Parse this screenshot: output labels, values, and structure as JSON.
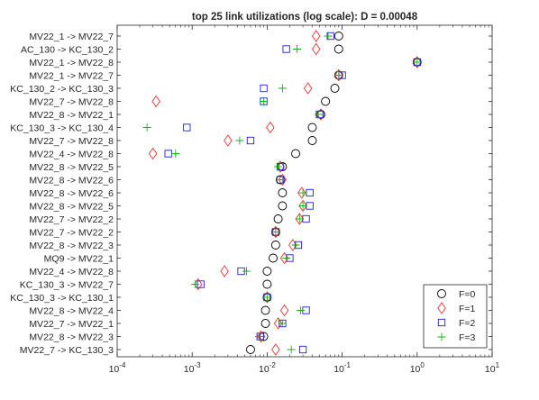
{
  "chart_data": {
    "type": "scatter",
    "title": "top 25 link utilizations (log scale): D = 0.00048",
    "xscale": "log",
    "xlim": [
      0.0001,
      10
    ],
    "xticks": [
      {
        "value": 0.0001,
        "base": "10",
        "exp": "-4"
      },
      {
        "value": 0.001,
        "base": "10",
        "exp": "-3"
      },
      {
        "value": 0.01,
        "base": "10",
        "exp": "-2"
      },
      {
        "value": 0.1,
        "base": "10",
        "exp": "-1"
      },
      {
        "value": 1,
        "base": "10",
        "exp": "0"
      },
      {
        "value": 10,
        "base": "10",
        "exp": "1"
      }
    ],
    "categories": [
      "MV22_1 -> MV22_7",
      "AC_130 -> KC_130_2",
      "MV22_1 -> MV22_8",
      "MV22_1 -> MV22_7",
      "KC_130_2 -> KC_130_3",
      "MV22_7 -> MV22_8",
      "MV22_8 -> MV22_1",
      "KC_130_3 -> KC_130_4",
      "MV22_7 -> MV22_8",
      "MV22_4 -> MV22_8",
      "MV22_8 -> MV22_5",
      "MV22_8 -> MV22_6",
      "MV22_8 -> MV22_6",
      "MV22_8 -> MV22_5",
      "MV22_7 -> MV22_2",
      "MV22_7 -> MV22_2",
      "MV22_8 -> MV22_3",
      "MQ9 -> MV22_1",
      "MV22_4 -> MV22_8",
      "KC_130_3 -> MV22_7",
      "KC_130_3 -> KC_130_1",
      "MV22_8 -> MV22_4",
      "MV22_7 -> MV22_1",
      "MV22_8 -> MV22_3",
      "MV22_7 -> KC_130_3"
    ],
    "series": [
      {
        "name": "F=0",
        "marker": "circle",
        "color": "#000000",
        "values": [
          0.09,
          0.09,
          1.0,
          0.09,
          0.08,
          0.06,
          0.052,
          0.04,
          0.04,
          0.024,
          0.016,
          0.015,
          0.016,
          0.016,
          0.014,
          0.013,
          0.013,
          0.012,
          0.01,
          0.01,
          0.01,
          0.0095,
          0.0095,
          0.009,
          0.006
        ]
      },
      {
        "name": "F=1",
        "marker": "diamond",
        "color": "#e8312f",
        "values": [
          0.045,
          0.045,
          1.0,
          0.09,
          0.035,
          0.00033,
          0.052,
          0.011,
          0.003,
          0.0003,
          0.015,
          0.016,
          0.029,
          0.03,
          0.027,
          0.013,
          0.022,
          0.017,
          0.0027,
          0.0012,
          0.01,
          0.017,
          0.014,
          0.0083,
          0.013
        ]
      },
      {
        "name": "F=2",
        "marker": "square",
        "color": "#1f1fd8",
        "values": [
          0.07,
          0.018,
          1.0,
          0.1,
          0.009,
          0.009,
          0.05,
          0.00085,
          0.006,
          0.00048,
          0.015,
          0.015,
          0.037,
          0.037,
          0.033,
          0.013,
          0.026,
          0.02,
          0.0045,
          0.0013,
          0.01,
          0.033,
          0.016,
          0.0081,
          0.03
        ]
      },
      {
        "name": "F=3",
        "marker": "plus",
        "color": "#16b316",
        "values": [
          0.065,
          0.025,
          1.0,
          0.09,
          0.016,
          0.009,
          0.048,
          0.00025,
          0.0043,
          0.0006,
          0.014,
          0.016,
          0.03,
          0.03,
          0.027,
          0.013,
          0.024,
          0.018,
          0.0053,
          0.0011,
          0.01,
          0.028,
          0.016,
          0.0078,
          0.021
        ]
      }
    ],
    "legend": {
      "position": "bottom-right",
      "entries": [
        "F=0",
        "F=1",
        "F=2",
        "F=3"
      ]
    },
    "grid": false
  }
}
